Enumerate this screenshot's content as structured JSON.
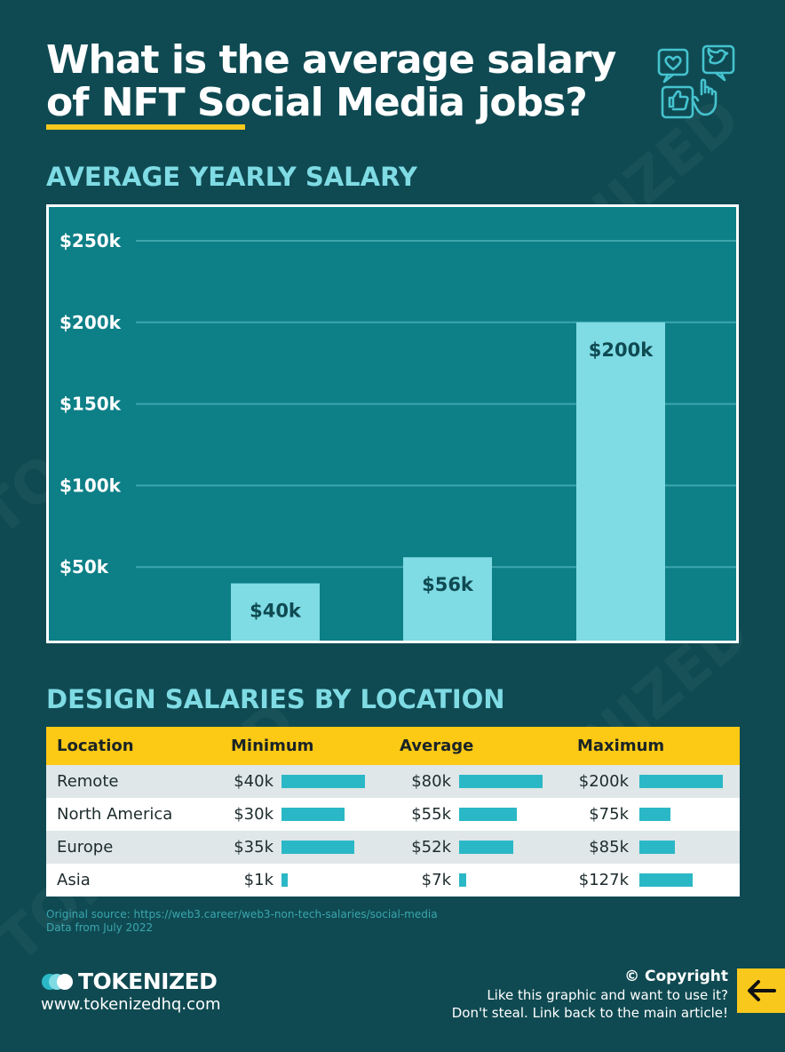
{
  "title": {
    "line1": "What is the average salary",
    "line2": "of NFT Social Media jobs?"
  },
  "icons": {
    "header": "social-media-icon",
    "logo": "tokenized-logo-icon",
    "arrow": "arrow-left-icon"
  },
  "colors": {
    "background": "#0f4a52",
    "chart_bg": "#0d7f87",
    "bar": "#7fdbe4",
    "accent_yellow": "#f8c81d",
    "table_bar": "#2bb8c6"
  },
  "chart_data": {
    "type": "bar",
    "title": "AVERAGE YEARLY SALARY",
    "categories": [
      "",
      "",
      ""
    ],
    "values": [
      40,
      56,
      200
    ],
    "data_labels": [
      "$40k",
      "$56k",
      "$200k"
    ],
    "y_ticks": [
      {
        "value": 50,
        "label": "$50k"
      },
      {
        "value": 100,
        "label": "$100k"
      },
      {
        "value": 150,
        "label": "$150k"
      },
      {
        "value": 200,
        "label": "$200k"
      },
      {
        "value": 250,
        "label": "$250k"
      }
    ],
    "ylim": [
      0,
      250
    ],
    "grid": true
  },
  "table": {
    "title": "DESIGN SALARIES BY LOCATION",
    "headers": [
      "Location",
      "Minimum",
      "Average",
      "Maximum"
    ],
    "rows": [
      {
        "location": "Remote",
        "min": "$40k",
        "min_v": 40,
        "avg": "$80k",
        "avg_v": 80,
        "max": "$200k",
        "max_v": 200
      },
      {
        "location": "North America",
        "min": "$30k",
        "min_v": 30,
        "avg": "$55k",
        "avg_v": 55,
        "max": "$75k",
        "max_v": 75
      },
      {
        "location": "Europe",
        "min": "$35k",
        "min_v": 35,
        "avg": "$52k",
        "avg_v": 52,
        "max": "$85k",
        "max_v": 85
      },
      {
        "location": "Asia",
        "min": "$1k",
        "min_v": 1,
        "avg": "$7k",
        "avg_v": 7,
        "max": "$127k",
        "max_v": 127
      }
    ],
    "column_max": {
      "min": 40,
      "avg": 80,
      "max": 200
    }
  },
  "source": {
    "line1": "Original source: https://web3.career/web3-non-tech-salaries/social-media",
    "line2": "Data from July 2022"
  },
  "footer": {
    "brand": "TOKENIZED",
    "website": "www.tokenizedhq.com",
    "copyright_title": "© Copyright",
    "copyright_line1": "Like this graphic and want to use it?",
    "copyright_line2": "Don't steal. Link back to the main article!"
  },
  "watermark": "TOKENIZED"
}
